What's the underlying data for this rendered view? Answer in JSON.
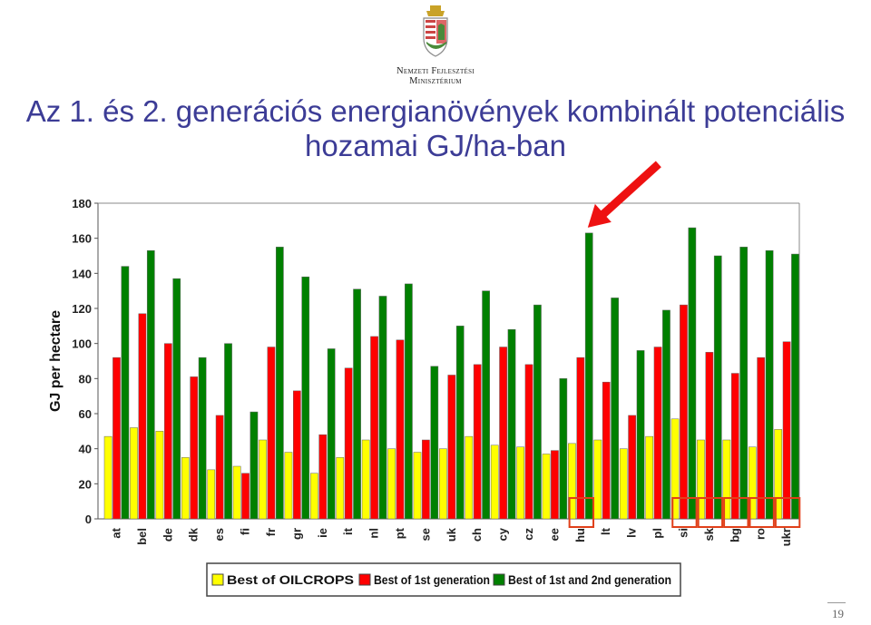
{
  "header": {
    "org_line1": "Nemzeti Fejlesztési",
    "org_line2": "Minisztérium",
    "title_line1": "Az 1. és 2. generációs energianövények kombinált potenciális",
    "title_line2": "hozamai GJ/ha-ban"
  },
  "footer": {
    "page_number": "19"
  },
  "colors": {
    "title": "#3c3c96",
    "oilcrops": "#ffff00",
    "first_gen": "#ff0000",
    "second_gen": "#008000",
    "highlight": "#e0401a",
    "arrow": "#ee1111"
  },
  "chart_data": {
    "type": "bar",
    "ylabel": "GJ per hectare",
    "xlabel": "",
    "ylim": [
      0,
      180
    ],
    "yticks": [
      0,
      20,
      40,
      60,
      80,
      100,
      120,
      140,
      160,
      180
    ],
    "grid": false,
    "legend_position": "bottom",
    "categories": [
      "at",
      "bel",
      "de",
      "dk",
      "es",
      "fi",
      "fr",
      "gr",
      "ie",
      "it",
      "nl",
      "pt",
      "se",
      "uk",
      "ch",
      "cy",
      "cz",
      "ee",
      "hu",
      "lt",
      "lv",
      "pl",
      "si",
      "sk",
      "bg",
      "ro",
      "ukr"
    ],
    "series": [
      {
        "name": "Best of OILCROPS",
        "color": "#ffff00",
        "values": [
          47,
          52,
          50,
          35,
          28,
          30,
          45,
          38,
          26,
          35,
          45,
          40,
          38,
          40,
          47,
          42,
          41,
          37,
          43,
          45,
          40,
          47,
          57,
          45,
          45,
          41,
          51
        ]
      },
      {
        "name": "Best of 1st generation",
        "color": "#ff0000",
        "values": [
          92,
          117,
          100,
          81,
          59,
          26,
          98,
          73,
          48,
          86,
          104,
          102,
          45,
          82,
          88,
          98,
          88,
          39,
          92,
          78,
          59,
          98,
          122,
          95,
          83,
          92,
          101
        ]
      },
      {
        "name": "Best of 1st and 2nd generation",
        "color": "#008000",
        "values": [
          144,
          153,
          137,
          92,
          100,
          61,
          155,
          138,
          97,
          131,
          127,
          134,
          87,
          110,
          130,
          108,
          122,
          80,
          163,
          126,
          96,
          119,
          166,
          150,
          155,
          153,
          151
        ]
      }
    ],
    "highlighted_categories": [
      "hu",
      "si",
      "sk",
      "bg",
      "ro",
      "ukr"
    ],
    "arrow_target": "hu"
  }
}
